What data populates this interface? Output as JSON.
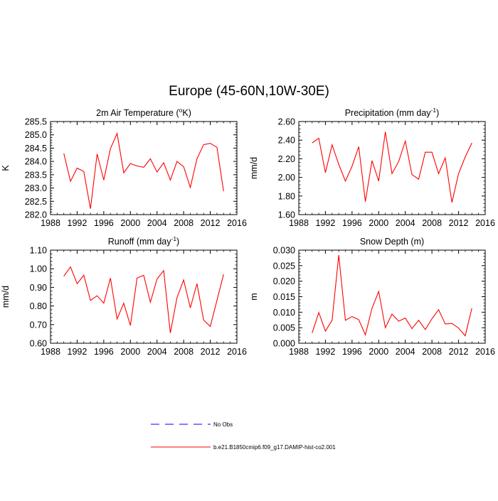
{
  "figure": {
    "title": "Europe (45-60N,10W-30E)"
  },
  "legend": {
    "items": [
      {
        "label": "No Obs",
        "color": "#0000ff",
        "dash": "dashed"
      },
      {
        "label": "b.e21.B1850cmip6.f09_g17.DAMIP-hist-co2.001",
        "color": "#ff0000",
        "dash": "solid"
      }
    ]
  },
  "chart_data": [
    {
      "type": "line",
      "title": "2m Air Temperature (",
      "title_sup": "o",
      "title_after": "K)",
      "ylabel": "K",
      "xlabel": "",
      "xlim": [
        1988,
        2016
      ],
      "ylim": [
        282.0,
        285.5
      ],
      "xticks": [
        1988,
        1992,
        1996,
        2000,
        2004,
        2008,
        2012,
        2016
      ],
      "yticks": [
        "282.0",
        "282.5",
        "283.0",
        "283.5",
        "284.0",
        "284.5",
        "285.0",
        "285.5"
      ],
      "series": [
        {
          "color": "#ff0000",
          "x": [
            1990,
            1991,
            1992,
            1993,
            1994,
            1995,
            1996,
            1997,
            1998,
            1999,
            2000,
            2001,
            2002,
            2003,
            2004,
            2005,
            2006,
            2007,
            2008,
            2009,
            2010,
            2011,
            2012,
            2013,
            2014
          ],
          "y": [
            284.3,
            283.25,
            283.75,
            283.62,
            282.22,
            284.28,
            283.3,
            284.48,
            285.05,
            283.57,
            283.92,
            283.83,
            283.78,
            284.1,
            283.6,
            283.95,
            283.3,
            284.0,
            283.8,
            283.02,
            284.1,
            284.63,
            284.68,
            284.53,
            282.88
          ]
        }
      ]
    },
    {
      "type": "line",
      "title": "Precipitation (mm day",
      "title_sup": "-1",
      "title_after": ")",
      "ylabel": "mm/d",
      "xlabel": "",
      "xlim": [
        1988,
        2016
      ],
      "ylim": [
        1.6,
        2.6
      ],
      "xticks": [
        1988,
        1992,
        1996,
        2000,
        2004,
        2008,
        2012,
        2016
      ],
      "yticks": [
        "1.60",
        "1.80",
        "2.00",
        "2.20",
        "2.40",
        "2.60"
      ],
      "series": [
        {
          "color": "#ff0000",
          "x": [
            1990,
            1991,
            1992,
            1993,
            1994,
            1995,
            1996,
            1997,
            1998,
            1999,
            2000,
            2001,
            2002,
            2003,
            2004,
            2005,
            2006,
            2007,
            2008,
            2009,
            2010,
            2011,
            2012,
            2013,
            2014
          ],
          "y": [
            2.37,
            2.42,
            2.05,
            2.35,
            2.14,
            1.96,
            2.12,
            2.33,
            1.74,
            2.18,
            1.96,
            2.49,
            2.04,
            2.17,
            2.39,
            2.03,
            1.98,
            2.27,
            2.27,
            2.04,
            2.21,
            1.73,
            2.04,
            2.22,
            2.37
          ]
        }
      ]
    },
    {
      "type": "line",
      "title": "Runoff (mm day",
      "title_sup": "-1",
      "title_after": ")",
      "ylabel": "mm/d",
      "xlabel": "",
      "xlim": [
        1988,
        2016
      ],
      "ylim": [
        0.6,
        1.1
      ],
      "xticks": [
        1988,
        1992,
        1996,
        2000,
        2004,
        2008,
        2012,
        2016
      ],
      "yticks": [
        "0.60",
        "0.70",
        "0.80",
        "0.90",
        "1.00",
        "1.10"
      ],
      "series": [
        {
          "color": "#ff0000",
          "x": [
            1990,
            1991,
            1992,
            1993,
            1994,
            1995,
            1996,
            1997,
            1998,
            1999,
            2000,
            2001,
            2002,
            2003,
            2004,
            2005,
            2006,
            2007,
            2008,
            2009,
            2010,
            2011,
            2012,
            2013,
            2014
          ],
          "y": [
            0.96,
            1.01,
            0.92,
            0.965,
            0.83,
            0.855,
            0.815,
            0.95,
            0.73,
            0.815,
            0.695,
            0.95,
            0.965,
            0.82,
            0.945,
            0.99,
            0.655,
            0.845,
            0.94,
            0.79,
            0.92,
            0.725,
            0.69,
            0.83,
            0.97
          ]
        }
      ]
    },
    {
      "type": "line",
      "title": "Snow Depth (m)",
      "title_sup": "",
      "title_after": "",
      "ylabel": "m",
      "xlabel": "",
      "xlim": [
        1988,
        2016
      ],
      "ylim": [
        0.0,
        0.03
      ],
      "xticks": [
        1988,
        1992,
        1996,
        2000,
        2004,
        2008,
        2012,
        2016
      ],
      "yticks": [
        "0.000",
        "0.005",
        "0.010",
        "0.015",
        "0.020",
        "0.025",
        "0.030"
      ],
      "series": [
        {
          "color": "#ff0000",
          "x": [
            1990,
            1991,
            1992,
            1993,
            1994,
            1995,
            1996,
            1997,
            1998,
            1999,
            2000,
            2001,
            2002,
            2003,
            2004,
            2005,
            2006,
            2007,
            2008,
            2009,
            2010,
            2011,
            2012,
            2013,
            2014
          ],
          "y": [
            0.0033,
            0.0099,
            0.0039,
            0.0074,
            0.0284,
            0.0074,
            0.0086,
            0.0076,
            0.0027,
            0.0113,
            0.0167,
            0.005,
            0.0094,
            0.0071,
            0.0081,
            0.0047,
            0.0074,
            0.0044,
            0.0079,
            0.0108,
            0.0062,
            0.0064,
            0.0049,
            0.0024,
            0.0113
          ]
        }
      ]
    }
  ]
}
